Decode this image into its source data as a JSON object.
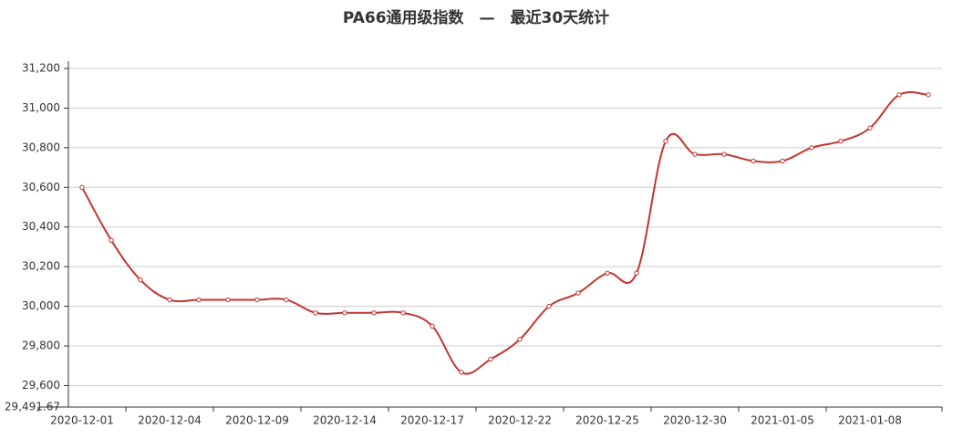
{
  "chart_data": {
    "type": "line",
    "title": "PA66通用级指数　—　最近30天统计",
    "categories": [
      "2020-12-01",
      null,
      null,
      "2020-12-04",
      null,
      null,
      "2020-12-09",
      null,
      null,
      "2020-12-14",
      null,
      null,
      "2020-12-17",
      null,
      null,
      "2020-12-22",
      null,
      null,
      "2020-12-25",
      null,
      null,
      "2020-12-30",
      null,
      null,
      "2021-01-05",
      null,
      null,
      "2021-01-08",
      null,
      null
    ],
    "series": [
      {
        "color": "#c23531",
        "values": [
          30600,
          30333,
          30133,
          30033,
          30033,
          30033,
          30033,
          30033,
          29967,
          29967,
          29967,
          29967,
          29900,
          29667,
          29733,
          29833,
          30000,
          30067,
          30167,
          30167,
          30833,
          30767,
          30767,
          30733,
          30733,
          30800,
          30833,
          30900,
          31067,
          31067
        ]
      }
    ],
    "ylim": [
      29491.67,
      31200
    ],
    "yticks": [
      {
        "value": 29491.67,
        "label": "29,491.67"
      },
      {
        "value": 29600,
        "label": "29,600"
      },
      {
        "value": 29800,
        "label": "29,800"
      },
      {
        "value": 30000,
        "label": "30,000"
      },
      {
        "value": 30200,
        "label": "30,200"
      },
      {
        "value": 30400,
        "label": "30,400"
      },
      {
        "value": 30600,
        "label": "30,600"
      },
      {
        "value": 30800,
        "label": "30,800"
      },
      {
        "value": 31000,
        "label": "31,000"
      },
      {
        "value": 31200,
        "label": "31,200"
      }
    ],
    "grid": true
  }
}
